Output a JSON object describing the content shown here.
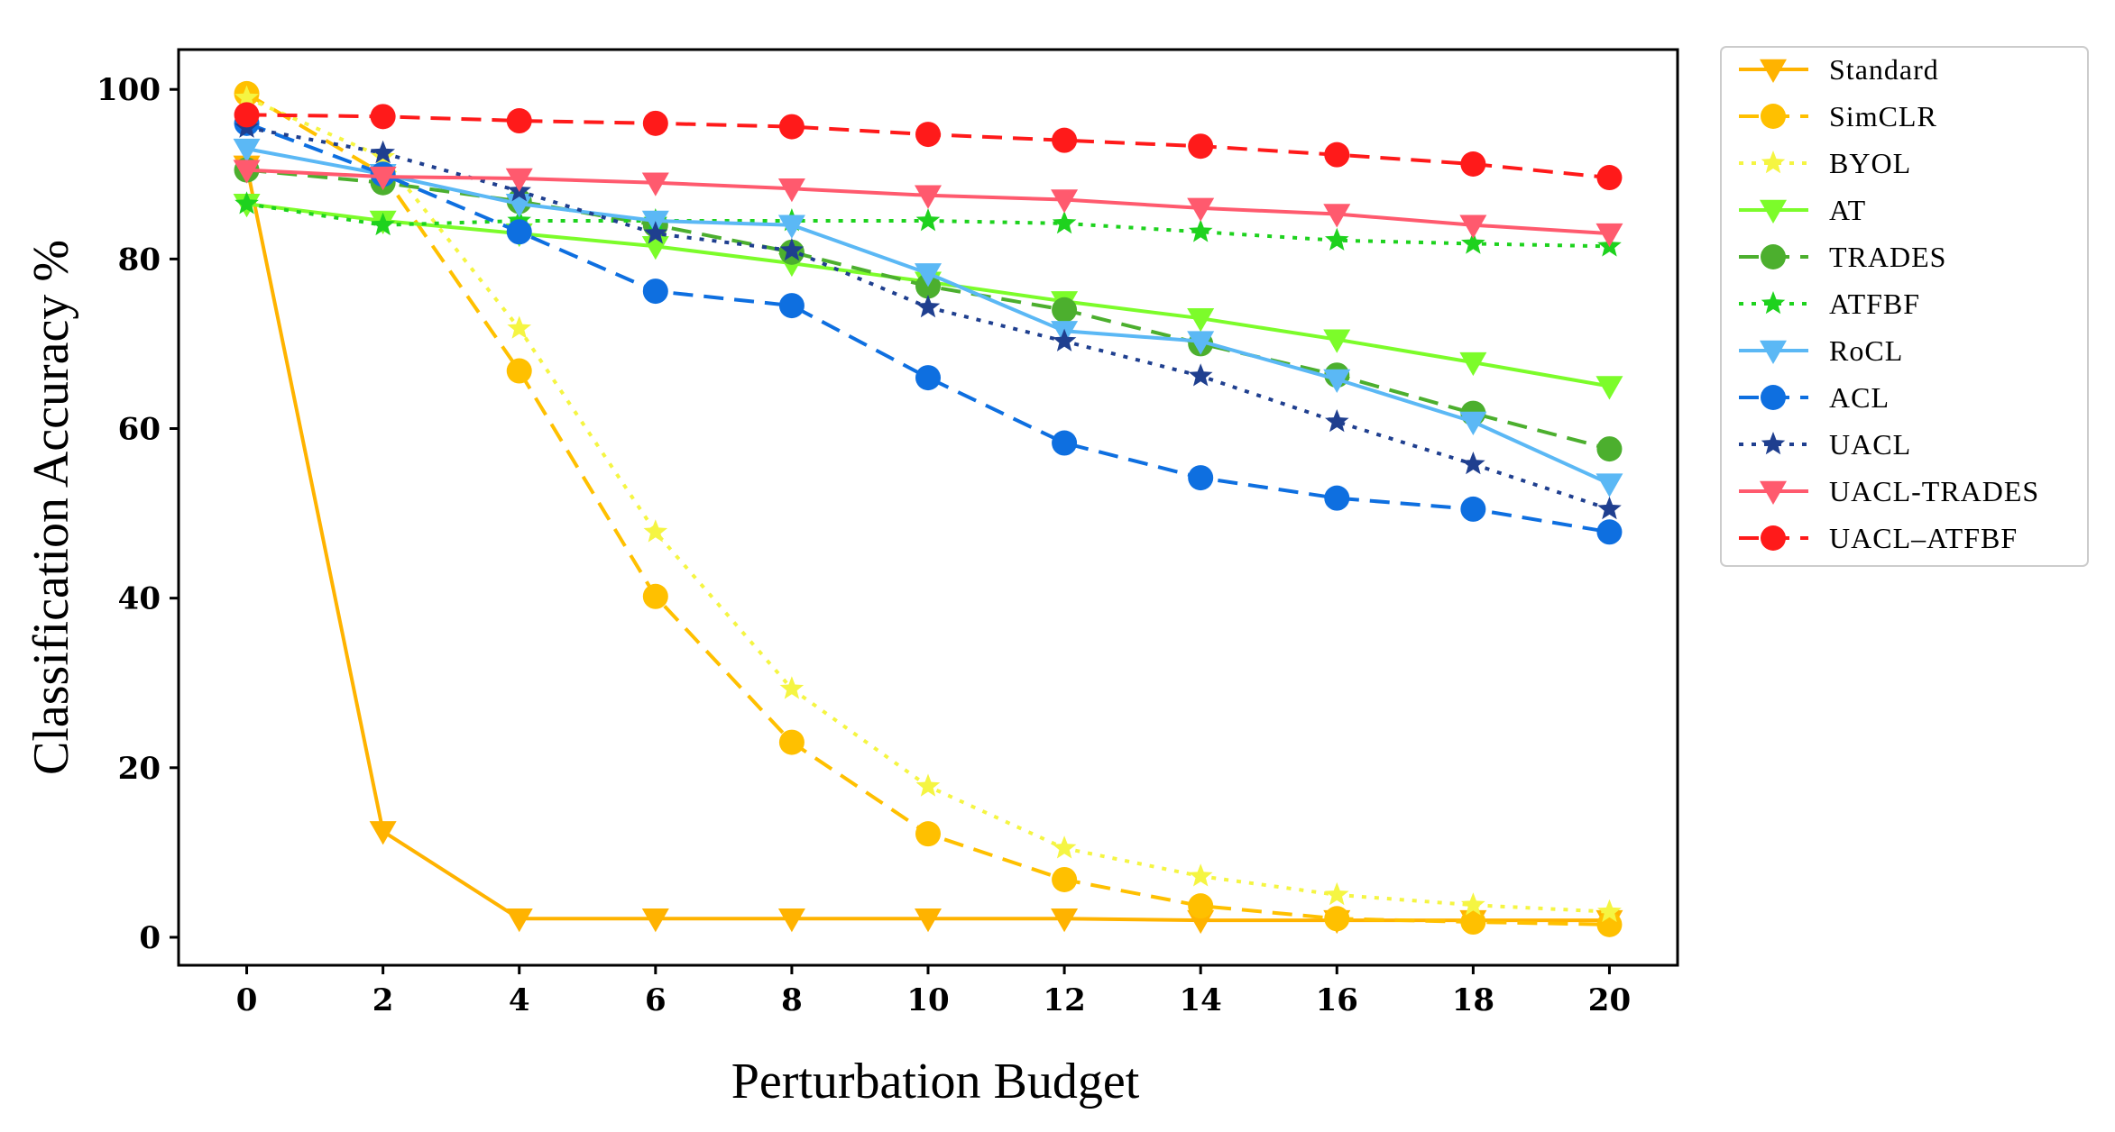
{
  "chart_data": {
    "type": "line",
    "title": "",
    "xlabel": "Perturbation Budget",
    "ylabel": "Classification Accuracy  %",
    "x": [
      0,
      2,
      4,
      6,
      8,
      10,
      12,
      14,
      16,
      18,
      20
    ],
    "xlim": [
      -1,
      21
    ],
    "ylim": [
      -3.3,
      104.7
    ],
    "xticks": [
      "0",
      "2",
      "4",
      "6",
      "8",
      "10",
      "12",
      "14",
      "16",
      "18",
      "20"
    ],
    "yticks": [
      "0",
      "20",
      "40",
      "60",
      "80",
      "100"
    ],
    "grid": false,
    "legend_position": "outside-right-top",
    "series": [
      {
        "name": "Standard",
        "color": "#FFB300",
        "linestyle": "solid",
        "marker": "triangle-down",
        "values": [
          91,
          12.5,
          2.2,
          2.2,
          2.2,
          2.2,
          2.2,
          2.0,
          2.0,
          2.0,
          2.0
        ]
      },
      {
        "name": "SimCLR",
        "color": "#FFC000",
        "linestyle": "dashed",
        "marker": "circle",
        "values": [
          99.5,
          90,
          66.8,
          40.2,
          23,
          12.2,
          6.8,
          3.7,
          2.2,
          1.8,
          1.5
        ]
      },
      {
        "name": "BYOL",
        "color": "#F5F542",
        "linestyle": "dotted",
        "marker": "star",
        "values": [
          99,
          92,
          71.8,
          47.8,
          29.3,
          17.8,
          10.5,
          7.2,
          5.0,
          3.8,
          3.0
        ]
      },
      {
        "name": "AT",
        "color": "#7CFC2A",
        "linestyle": "solid",
        "marker": "triangle-down",
        "values": [
          86.5,
          84.5,
          83,
          81.5,
          79.5,
          77.3,
          75,
          73,
          70.5,
          67.8,
          65
        ]
      },
      {
        "name": "TRADES",
        "color": "#4CAF2E",
        "linestyle": "dashed",
        "marker": "circle",
        "values": [
          90.5,
          89,
          86.8,
          84,
          80.8,
          76.8,
          74,
          70,
          66.3,
          61.8,
          57.6
        ]
      },
      {
        "name": "ATFBF",
        "color": "#1ED21E",
        "linestyle": "dotted",
        "marker": "star",
        "values": [
          86.5,
          84,
          84.5,
          84.5,
          84.5,
          84.5,
          84.2,
          83.2,
          82.2,
          81.8,
          81.5
        ]
      },
      {
        "name": "RoCL",
        "color": "#5BB8F5",
        "linestyle": "solid",
        "marker": "triangle-down",
        "values": [
          93,
          90,
          86.5,
          84.5,
          84,
          78.3,
          71.5,
          70.3,
          65.8,
          60.8,
          53.5
        ]
      },
      {
        "name": "ACL",
        "color": "#0E6FE0",
        "linestyle": "dashed",
        "marker": "circle",
        "values": [
          96,
          90,
          83.2,
          76.2,
          74.5,
          66,
          58.3,
          54.2,
          51.8,
          50.5,
          47.8
        ]
      },
      {
        "name": "UACL",
        "color": "#1F3F8F",
        "linestyle": "dotted",
        "marker": "star",
        "values": [
          95.5,
          92.5,
          88,
          83,
          81,
          74.3,
          70.3,
          66.2,
          60.8,
          55.8,
          50.5
        ]
      },
      {
        "name": "UACL-TRADES",
        "color": "#FF5A6E",
        "linestyle": "solid",
        "marker": "triangle-down",
        "values": [
          90.5,
          89.7,
          89.5,
          89,
          88.3,
          87.5,
          87,
          86,
          85.3,
          84,
          83
        ]
      },
      {
        "name": "UACL–ATFBF",
        "color": "#FF1A1A",
        "linestyle": "dashed",
        "marker": "circle",
        "values": [
          97,
          96.8,
          96.3,
          96,
          95.6,
          94.7,
          94,
          93.3,
          92.3,
          91.2,
          89.6
        ]
      }
    ]
  }
}
